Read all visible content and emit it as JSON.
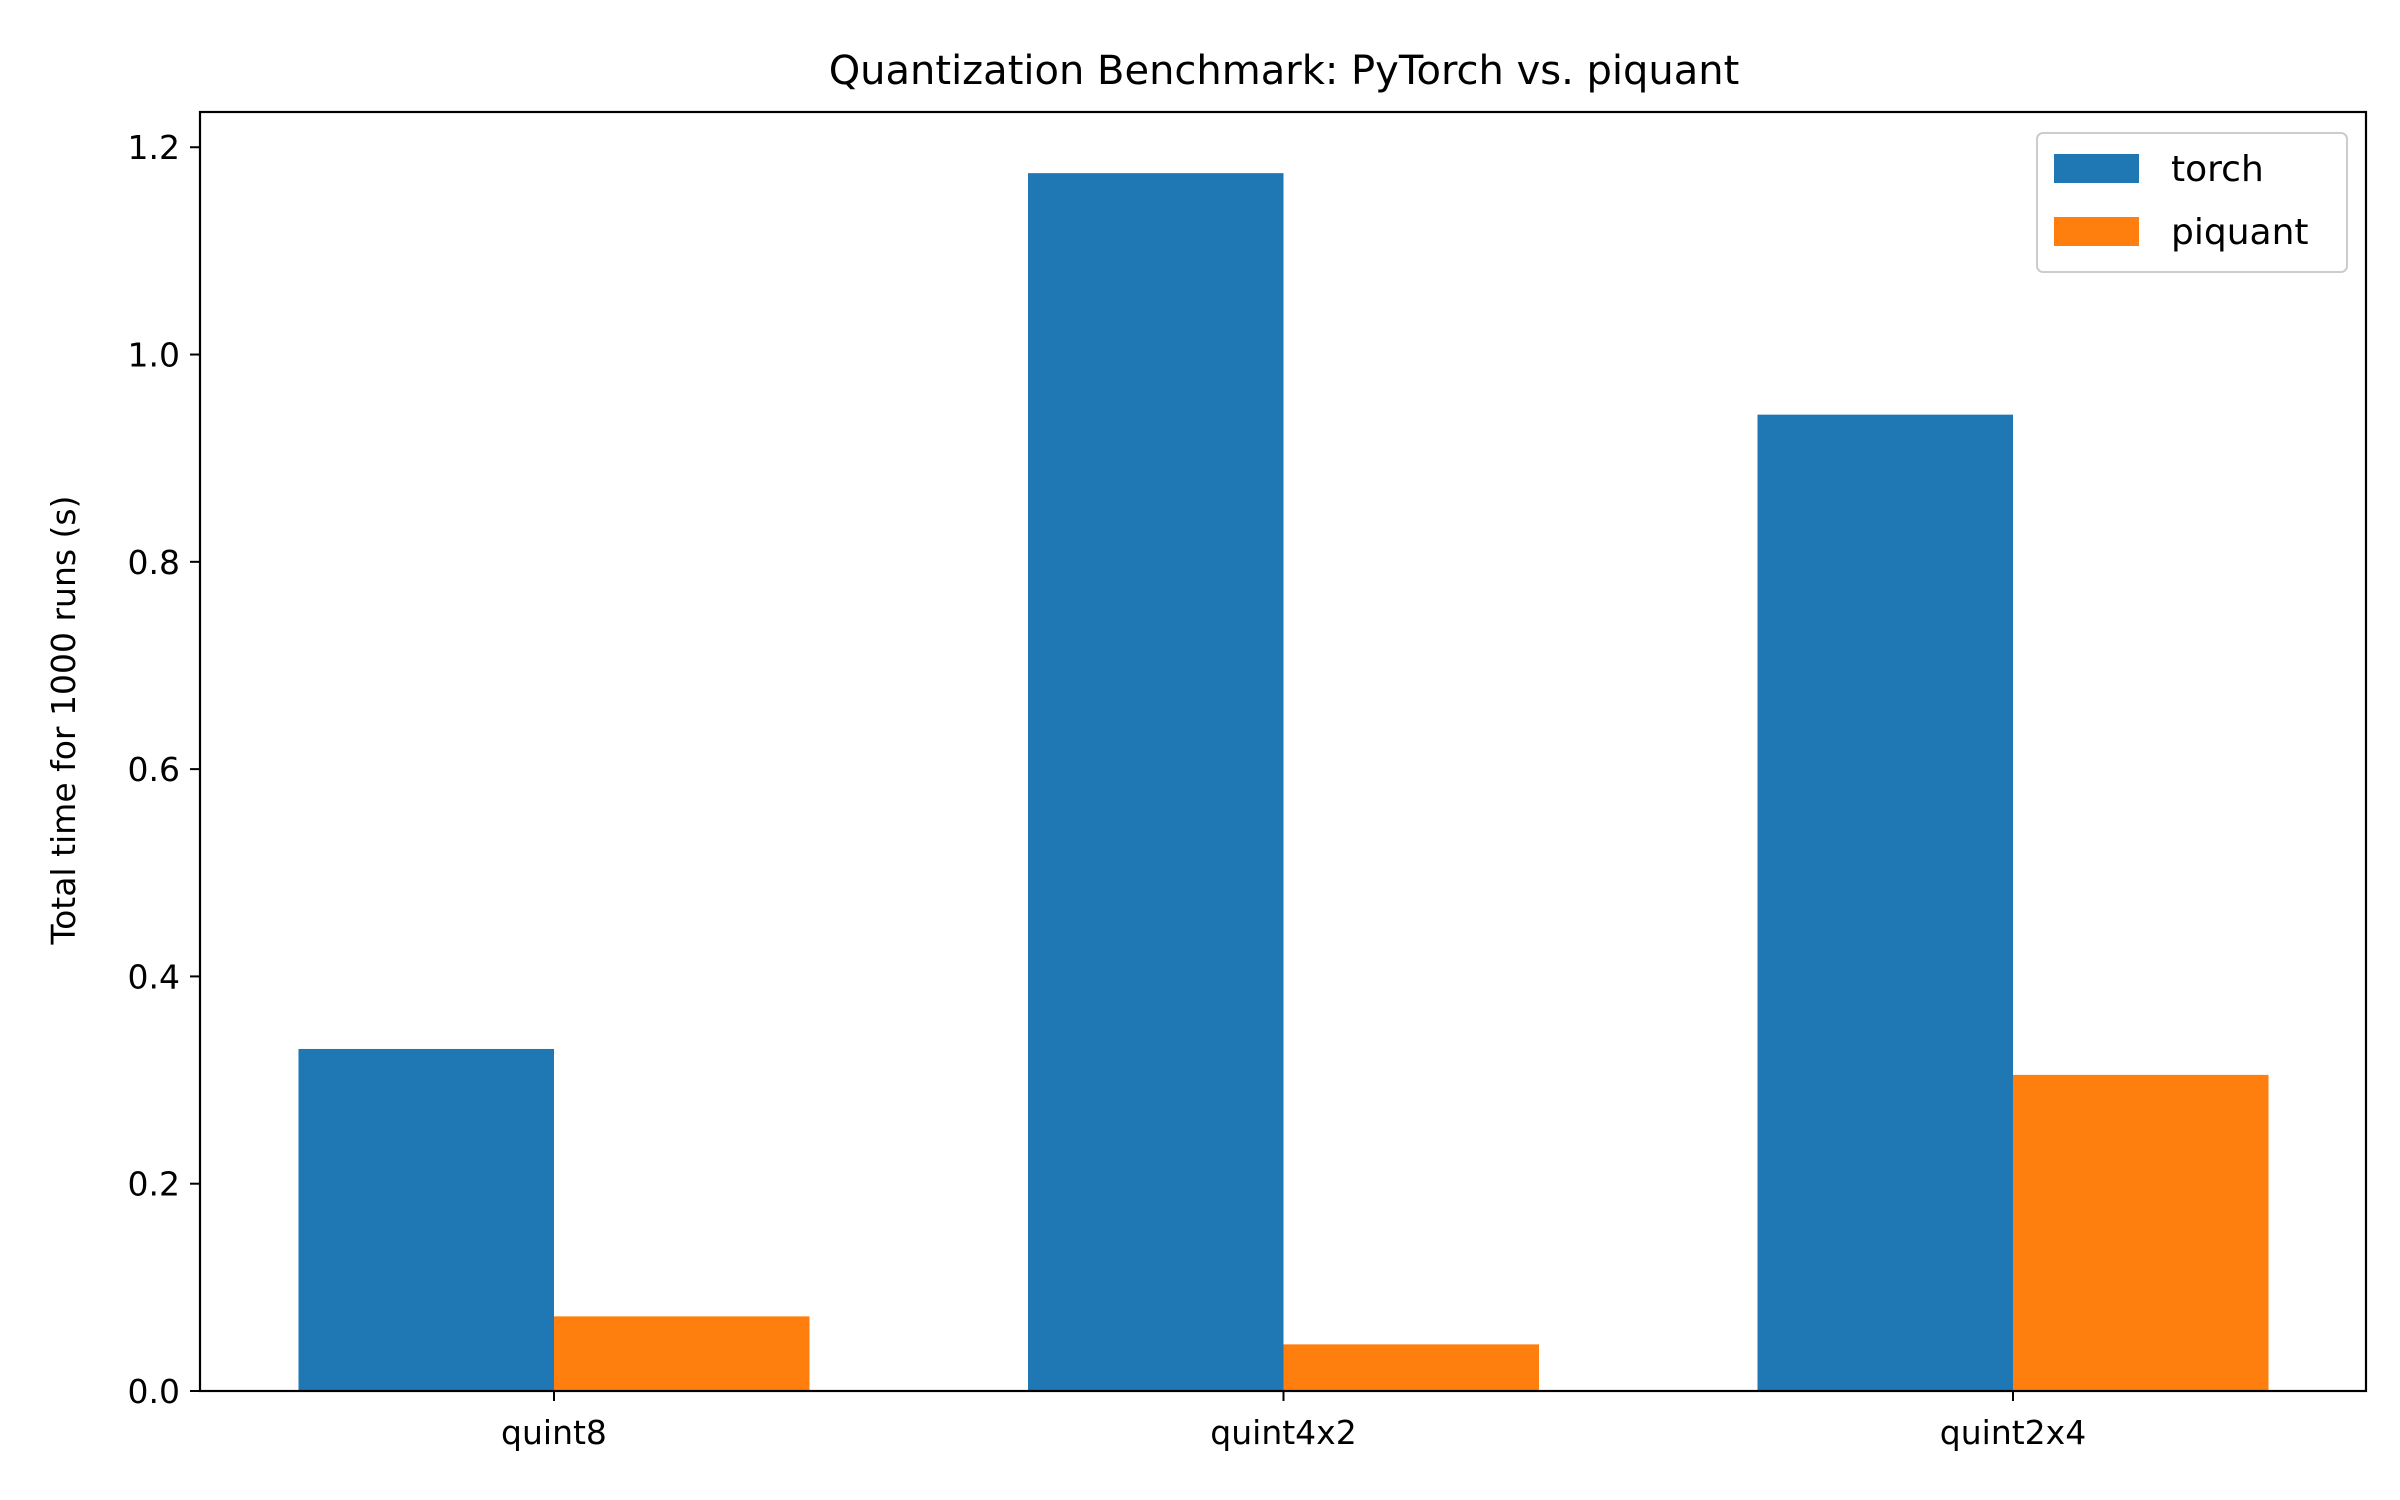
{
  "chart_data": {
    "type": "bar",
    "title": "Quantization Benchmark: PyTorch vs. piquant",
    "xlabel": "",
    "ylabel": "Total time for 1000 runs (s)",
    "categories": [
      "quint8",
      "quint4x2",
      "quint2x4"
    ],
    "series": [
      {
        "name": "torch",
        "color": "#1f77b4",
        "values": [
          0.33,
          1.175,
          0.942
        ]
      },
      {
        "name": "piquant",
        "color": "#ff7f0e",
        "values": [
          0.072,
          0.045,
          0.305
        ]
      }
    ],
    "ylim": [
      0,
      1.234
    ],
    "yticks": [
      0.0,
      0.2,
      0.4,
      0.6,
      0.8,
      1.0,
      1.2
    ],
    "ytick_labels": [
      "0.0",
      "0.2",
      "0.4",
      "0.6",
      "0.8",
      "1.0",
      "1.2"
    ],
    "grid": false,
    "legend_position": "top-right"
  }
}
